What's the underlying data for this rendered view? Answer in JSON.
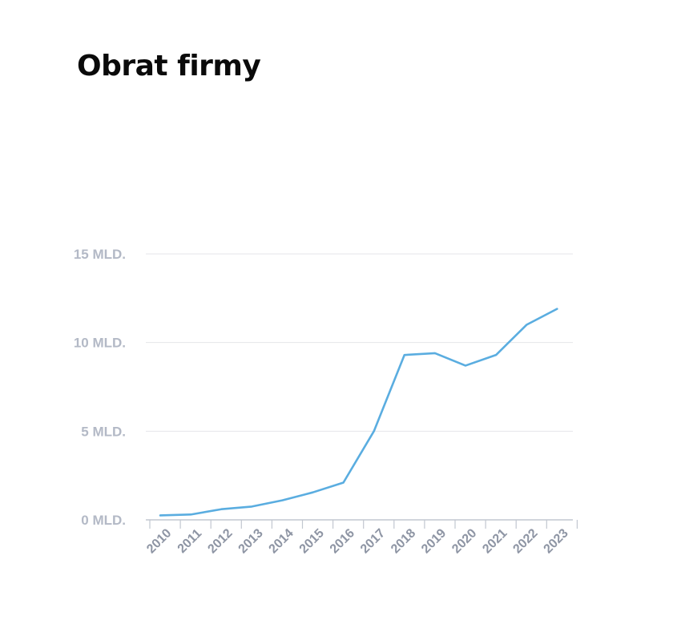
{
  "title": "Obrat firmy",
  "chart_data": {
    "type": "line",
    "title": "Obrat firmy",
    "xlabel": "",
    "ylabel": "",
    "categories": [
      "2010",
      "2011",
      "2012",
      "2013",
      "2014",
      "2015",
      "2016",
      "2017",
      "2018",
      "2019",
      "2020",
      "2021",
      "2022",
      "2023"
    ],
    "series": [
      {
        "values": [
          0.25,
          0.3,
          0.6,
          0.75,
          1.1,
          1.55,
          2.1,
          5.0,
          9.3,
          9.4,
          8.7,
          9.3,
          11.0,
          11.9
        ]
      }
    ],
    "y_ticks": [
      {
        "value": 0,
        "label": "0 MLD."
      },
      {
        "value": 5,
        "label": "5 MLD."
      },
      {
        "value": 10,
        "label": "10 MLD."
      },
      {
        "value": 15,
        "label": "15 MLD."
      }
    ],
    "ylim": [
      0,
      15
    ],
    "grid": true,
    "legend": false,
    "colors": {
      "line": "#5aade0",
      "grid": "#e4e6ea",
      "axis": "#c2c7d0",
      "tick_text": "#b3b9c6"
    }
  }
}
